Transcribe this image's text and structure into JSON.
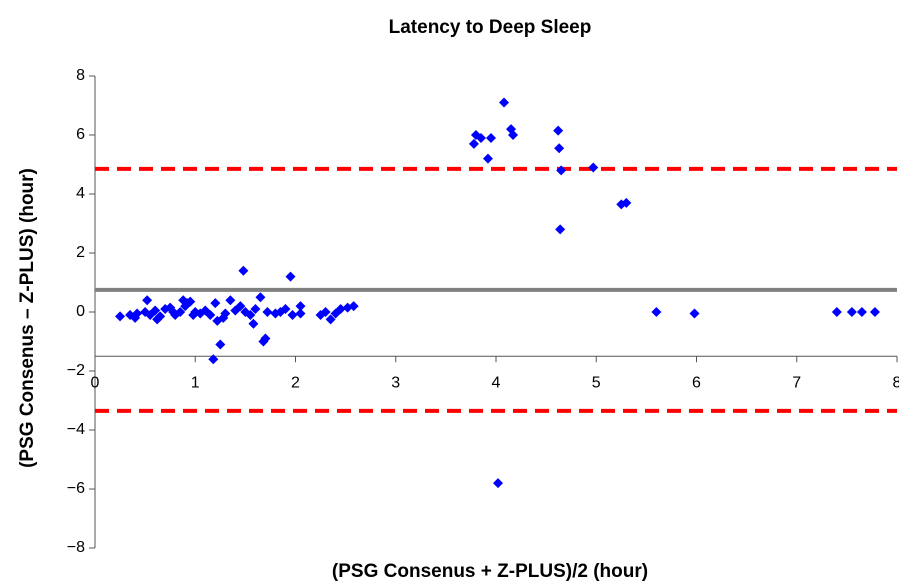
{
  "chart_data": {
    "type": "scatter",
    "title": "Latency to Deep Sleep",
    "x_label": "(PSG Consenus + Z-PLUS)/2 (hour)",
    "y_label": "(PSG Consenus – Z-PLUS) (hour)",
    "color": "#0000ff",
    "x": [
      0.25,
      0.35,
      0.4,
      0.42,
      0.5,
      0.52,
      0.55,
      0.6,
      0.62,
      0.65,
      0.7,
      0.75,
      0.78,
      0.8,
      0.85,
      0.88,
      0.9,
      0.92,
      0.95,
      0.98,
      1.0,
      1.05,
      1.1,
      1.15,
      1.18,
      1.2,
      1.22,
      1.25,
      1.28,
      1.3,
      1.35,
      1.4,
      1.45,
      1.48,
      1.5,
      1.55,
      1.58,
      1.6,
      1.65,
      1.68,
      1.7,
      1.72,
      1.8,
      1.85,
      1.9,
      1.95,
      1.97,
      2.05,
      2.05,
      2.25,
      2.3,
      2.35,
      2.4,
      2.45,
      2.52,
      2.58,
      3.78,
      3.8,
      3.85,
      3.92,
      3.95,
      4.02,
      4.08,
      4.15,
      4.17,
      4.62,
      4.63,
      4.65,
      4.64,
      4.97,
      5.25,
      5.3,
      5.6,
      5.98,
      7.4,
      7.55,
      7.65,
      7.78
    ],
    "values": [
      -0.15,
      -0.1,
      -0.2,
      -0.05,
      0.0,
      0.4,
      -0.1,
      0.05,
      -0.25,
      -0.15,
      0.1,
      0.15,
      0.0,
      -0.1,
      0.0,
      0.4,
      0.2,
      0.3,
      0.35,
      -0.1,
      0.0,
      -0.05,
      0.05,
      -0.1,
      -1.6,
      0.3,
      -0.3,
      -1.1,
      -0.2,
      -0.05,
      0.4,
      0.05,
      0.2,
      1.4,
      0.0,
      -0.1,
      -0.4,
      0.1,
      0.5,
      -1.0,
      -0.9,
      0.0,
      -0.05,
      0.0,
      0.1,
      1.2,
      -0.1,
      0.2,
      -0.05,
      -0.1,
      0.0,
      -0.25,
      -0.05,
      0.1,
      0.15,
      0.2,
      5.7,
      6.0,
      5.9,
      5.2,
      5.9,
      -5.8,
      7.1,
      6.2,
      6.0,
      6.15,
      5.55,
      4.8,
      2.8,
      4.9,
      3.65,
      3.7,
      0.0,
      -0.05,
      0.0,
      0.0,
      0.0,
      0.0
    ],
    "hlines": [
      {
        "value": 0.75,
        "color": "#808080",
        "dashed": false
      },
      {
        "value": 4.85,
        "color": "#ff0000",
        "dashed": true
      },
      {
        "value": -3.35,
        "color": "#ff0000",
        "dashed": true
      }
    ],
    "xlim": [
      0,
      8
    ],
    "xticks": [
      0,
      1,
      2,
      3,
      4,
      5,
      6,
      7,
      8
    ],
    "ylim": [
      -8,
      8
    ],
    "yticks": [
      {
        "value": -8,
        "label": "−8"
      },
      {
        "value": -6,
        "label": "−6"
      },
      {
        "value": -4,
        "label": "−4"
      },
      {
        "value": -2,
        "label": "−2"
      },
      0,
      2,
      4,
      6,
      8
    ],
    "xaxis_crosses": -1.5
  }
}
